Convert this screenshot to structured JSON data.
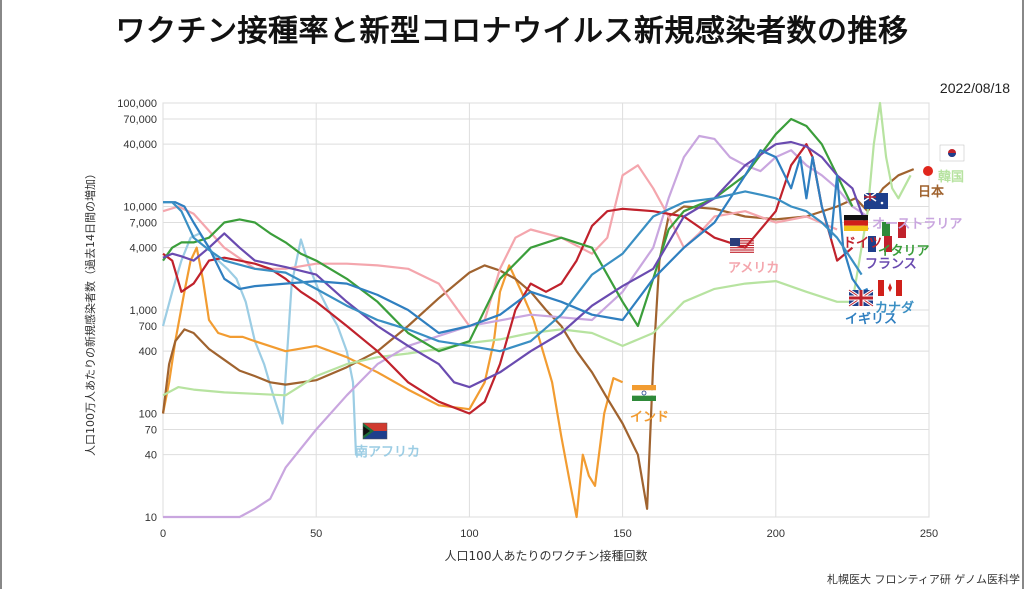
{
  "title": "ワクチン接種率と新型コロナウイルス新規感染者数の推移",
  "date": "2022/08/18",
  "credit": "札幌医大 フロンティア研 ゲノム医科学",
  "chart_data": {
    "type": "line",
    "title": "ワクチン接種率と新型コロナウイルス新規感染者数の推移",
    "xlabel": "人口100人あたりのワクチン接種回数",
    "ylabel": "人口100万人あたりの新規感染者数（過去14日間の増加）",
    "xlim": [
      0,
      250
    ],
    "ylim": [
      10,
      100000
    ],
    "yscale": "log",
    "xticks": [
      0,
      50,
      100,
      150,
      200,
      250
    ],
    "yticks": [
      {
        "v": 10,
        "label": "10"
      },
      {
        "v": 40,
        "label": "40"
      },
      {
        "v": 70,
        "label": "70"
      },
      {
        "v": 100,
        "label": "100"
      },
      {
        "v": 400,
        "label": "400"
      },
      {
        "v": 700,
        "label": "700"
      },
      {
        "v": 1000,
        "label": "1,000"
      },
      {
        "v": 4000,
        "label": "4,000"
      },
      {
        "v": 7000,
        "label": "7,000"
      },
      {
        "v": 10000,
        "label": "10,000"
      },
      {
        "v": 40000,
        "label": "40,000"
      },
      {
        "v": 70000,
        "label": "70,000"
      },
      {
        "v": 100000,
        "label": "100,000"
      }
    ],
    "series": [
      {
        "name": "南アフリカ",
        "color": "#9ccde4",
        "x": [
          0,
          3,
          6,
          9,
          12,
          15,
          18,
          21,
          24,
          27,
          30,
          33,
          36,
          39,
          42,
          45,
          48,
          51,
          54,
          57,
          60,
          62,
          63,
          65
        ],
        "y": [
          700,
          1500,
          3000,
          5000,
          5500,
          4000,
          3000,
          2500,
          2000,
          1200,
          500,
          300,
          150,
          80,
          1800,
          4800,
          2500,
          1500,
          1000,
          700,
          400,
          200,
          40,
          40
        ]
      },
      {
        "name": "インド",
        "color": "#f29c31",
        "x": [
          0,
          2,
          4,
          7,
          9,
          11,
          13,
          15,
          18,
          22,
          26,
          30,
          40,
          50,
          60,
          70,
          80,
          90,
          100,
          105,
          108,
          110,
          113,
          117,
          121,
          124,
          127,
          130,
          133,
          135,
          137,
          139,
          141,
          144,
          147,
          150
        ],
        "y": [
          100,
          200,
          500,
          1500,
          3000,
          4000,
          2000,
          800,
          600,
          550,
          550,
          500,
          400,
          450,
          350,
          250,
          170,
          120,
          110,
          200,
          500,
          1500,
          2700,
          1500,
          800,
          400,
          200,
          60,
          20,
          10,
          40,
          25,
          20,
          100,
          220,
          200
        ]
      },
      {
        "name": "日本",
        "color": "#a0632f",
        "x": [
          0,
          2,
          4,
          7,
          10,
          15,
          20,
          25,
          30,
          35,
          40,
          50,
          60,
          70,
          80,
          90,
          100,
          105,
          110,
          115,
          120,
          125,
          130,
          135,
          140,
          145,
          150,
          155,
          158,
          160,
          162,
          165,
          170,
          180,
          190,
          200,
          210,
          220,
          226,
          230,
          235,
          240,
          245
        ],
        "y": [
          100,
          300,
          500,
          650,
          600,
          420,
          330,
          260,
          230,
          200,
          190,
          210,
          280,
          400,
          700,
          1300,
          2300,
          2700,
          2400,
          2000,
          1500,
          1000,
          700,
          400,
          250,
          140,
          80,
          40,
          12,
          300,
          3000,
          8000,
          10000,
          9500,
          8000,
          7500,
          8000,
          10000,
          12000,
          9000,
          15000,
          20000,
          23000
        ]
      },
      {
        "name": "韓国",
        "color": "#b7e3a0",
        "x": [
          0,
          5,
          10,
          20,
          30,
          40,
          50,
          60,
          70,
          80,
          90,
          100,
          110,
          120,
          130,
          140,
          150,
          160,
          170,
          180,
          190,
          200,
          210,
          220,
          225,
          230,
          232,
          234,
          236,
          238,
          240,
          244
        ],
        "y": [
          150,
          180,
          170,
          160,
          155,
          150,
          230,
          300,
          350,
          380,
          420,
          480,
          520,
          600,
          650,
          600,
          450,
          600,
          1200,
          1600,
          1800,
          1900,
          1500,
          1200,
          1200,
          9000,
          40000,
          100000,
          30000,
          15000,
          12000,
          20000
        ]
      },
      {
        "name": "オーストラリア",
        "color": "#c9a6df",
        "x": [
          0,
          5,
          10,
          20,
          25,
          30,
          35,
          40,
          50,
          60,
          70,
          80,
          100,
          120,
          140,
          150,
          160,
          165,
          170,
          175,
          180,
          185,
          190,
          195,
          200,
          205,
          210,
          215,
          220,
          225,
          230
        ],
        "y": [
          10,
          10,
          10,
          10,
          10,
          12,
          15,
          30,
          70,
          150,
          300,
          450,
          700,
          900,
          800,
          1500,
          4000,
          12000,
          30000,
          48000,
          45000,
          30000,
          25000,
          22000,
          30000,
          35000,
          25000,
          20000,
          15000,
          10000,
          8000
        ]
      },
      {
        "name": "アメリカ",
        "color": "#f4a6ad",
        "x": [
          0,
          5,
          10,
          20,
          30,
          40,
          50,
          60,
          70,
          80,
          90,
          100,
          105,
          110,
          115,
          120,
          130,
          140,
          145,
          150,
          155,
          160,
          165,
          170,
          175,
          180,
          190,
          200,
          210,
          220
        ],
        "y": [
          9000,
          10000,
          8500,
          4000,
          2500,
          2500,
          2800,
          2800,
          2700,
          2500,
          1800,
          700,
          800,
          2500,
          5000,
          6000,
          5000,
          3500,
          5000,
          20000,
          25000,
          15000,
          8000,
          4000,
          5500,
          8000,
          9000,
          7000,
          8000,
          6000
        ]
      },
      {
        "name": "ドイツ",
        "color": "#c0222c",
        "x": [
          0,
          3,
          6,
          10,
          15,
          20,
          25,
          30,
          35,
          40,
          45,
          50,
          60,
          70,
          80,
          90,
          100,
          105,
          110,
          115,
          120,
          125,
          130,
          135,
          140,
          145,
          150,
          160,
          170,
          180,
          190,
          200,
          205,
          210,
          212,
          215,
          220,
          225
        ],
        "y": [
          3500,
          3000,
          1500,
          1800,
          3000,
          3200,
          3000,
          2800,
          2500,
          2000,
          1500,
          1200,
          700,
          400,
          200,
          130,
          100,
          130,
          300,
          1000,
          1800,
          1500,
          1800,
          3000,
          6500,
          9000,
          9500,
          9000,
          8000,
          5000,
          4000,
          9000,
          25000,
          40000,
          30000,
          10000,
          3000,
          4000
        ]
      },
      {
        "name": "イタリア",
        "color": "#3b9e3b",
        "x": [
          0,
          3,
          6,
          10,
          15,
          20,
          25,
          30,
          35,
          40,
          45,
          50,
          60,
          70,
          80,
          90,
          100,
          110,
          120,
          130,
          140,
          150,
          155,
          160,
          165,
          170,
          180,
          190,
          200,
          205,
          210,
          215,
          220,
          225
        ],
        "y": [
          3000,
          4000,
          4500,
          4500,
          5000,
          7000,
          7500,
          7000,
          5500,
          4500,
          3500,
          3000,
          2000,
          1200,
          600,
          400,
          500,
          2000,
          4000,
          5000,
          4000,
          1200,
          700,
          2000,
          6000,
          9000,
          12000,
          20000,
          50000,
          70000,
          60000,
          40000,
          20000,
          10000
        ]
      },
      {
        "name": "フランス",
        "color": "#6a4bb0",
        "x": [
          0,
          3,
          6,
          10,
          15,
          20,
          25,
          30,
          40,
          50,
          60,
          70,
          80,
          90,
          95,
          100,
          110,
          120,
          130,
          140,
          150,
          160,
          170,
          180,
          190,
          200,
          205,
          210,
          215,
          220,
          225,
          230
        ],
        "y": [
          3200,
          3500,
          3300,
          3000,
          4000,
          5500,
          4000,
          3000,
          2600,
          2200,
          1200,
          700,
          450,
          300,
          200,
          180,
          250,
          400,
          600,
          1100,
          1700,
          2500,
          8000,
          12000,
          25000,
          40000,
          42000,
          38000,
          30000,
          20000,
          15000,
          6000
        ]
      },
      {
        "name": "イギリス",
        "color": "#2f7fc0",
        "x": [
          0,
          2,
          4,
          7,
          10,
          15,
          20,
          25,
          30,
          40,
          50,
          60,
          70,
          80,
          90,
          100,
          110,
          120,
          130,
          140,
          150,
          160,
          170,
          180,
          190,
          195,
          200,
          205,
          208,
          210,
          212,
          215,
          218,
          220,
          222,
          225,
          228,
          230
        ],
        "y": [
          11000,
          11000,
          11000,
          10000,
          7000,
          4000,
          2000,
          1600,
          1700,
          1800,
          1900,
          1800,
          1400,
          1000,
          600,
          700,
          900,
          1500,
          1200,
          900,
          800,
          2000,
          4000,
          7000,
          20000,
          35000,
          30000,
          15000,
          30000,
          12000,
          30000,
          10000,
          5000,
          20000,
          4000,
          2000,
          1500,
          1600
        ]
      },
      {
        "name": "カナダ",
        "color": "#3a8fc3",
        "x": [
          0,
          3,
          6,
          10,
          15,
          20,
          30,
          40,
          50,
          60,
          70,
          80,
          90,
          100,
          110,
          120,
          130,
          140,
          150,
          160,
          170,
          180,
          190,
          195,
          200,
          205,
          210,
          215,
          220,
          225,
          228
        ],
        "y": [
          11000,
          11000,
          9000,
          5000,
          3800,
          3000,
          2500,
          2300,
          1600,
          1100,
          800,
          650,
          500,
          450,
          400,
          500,
          900,
          2200,
          3500,
          8000,
          11000,
          12000,
          14000,
          13000,
          12000,
          10000,
          9000,
          7000,
          5000,
          3000,
          2200
        ]
      }
    ],
    "labels": [
      {
        "text": "南アフリカ",
        "series": "南アフリカ"
      },
      {
        "text": "インド",
        "series": "インド"
      },
      {
        "text": "日本",
        "series": "日本"
      },
      {
        "text": "韓国",
        "series": "韓国"
      },
      {
        "text": "オーストラリア",
        "series": "オーストラリア"
      },
      {
        "text": "アメリカ",
        "series": "アメリカ"
      },
      {
        "text": "ドイツ",
        "series": "ドイツ"
      },
      {
        "text": "イタリア",
        "series": "イタリア"
      },
      {
        "text": "フランス",
        "series": "フランス"
      },
      {
        "text": "イギリス",
        "series": "イギリス"
      },
      {
        "text": "カナダ",
        "series": "カナダ"
      }
    ]
  }
}
